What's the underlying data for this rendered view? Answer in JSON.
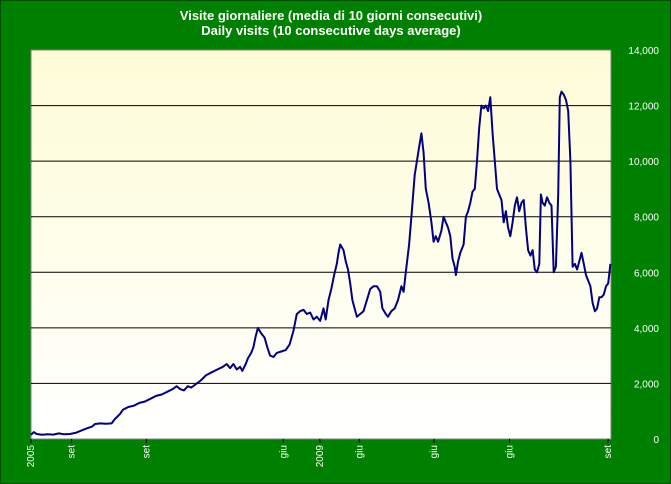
{
  "chart_data": {
    "type": "line",
    "title": "Visite giornaliere (media di 10 giorni consecutivi)",
    "subtitle": "Daily visits (10 consecutive days average)",
    "xlabel": "",
    "ylabel": "",
    "ylim": [
      0,
      14000
    ],
    "y_ticks": [
      "0",
      "2,000",
      "4,000",
      "6,000",
      "8,000",
      "10,000",
      "12,000",
      "14,000"
    ],
    "grid": true,
    "legend": "none",
    "x_ticks": [
      {
        "label": "2005",
        "pos": 0.0
      },
      {
        "label": "set",
        "pos": 0.07
      },
      {
        "label": "set",
        "pos": 0.199
      },
      {
        "label": "giu",
        "pos": 0.435
      },
      {
        "label": "2009",
        "pos": 0.498
      },
      {
        "label": "giu",
        "pos": 0.566
      },
      {
        "label": "giu",
        "pos": 0.695
      },
      {
        "label": "giu",
        "pos": 0.825
      },
      {
        "label": "set",
        "pos": 0.995
      }
    ],
    "series": [
      {
        "color": "#000080",
        "points": [
          [
            0.0,
            150
          ],
          [
            0.005,
            250
          ],
          [
            0.01,
            180
          ],
          [
            0.02,
            150
          ],
          [
            0.03,
            170
          ],
          [
            0.04,
            160
          ],
          [
            0.05,
            200
          ],
          [
            0.06,
            170
          ],
          [
            0.07,
            180
          ],
          [
            0.08,
            220
          ],
          [
            0.09,
            300
          ],
          [
            0.1,
            380
          ],
          [
            0.11,
            450
          ],
          [
            0.115,
            540
          ],
          [
            0.125,
            560
          ],
          [
            0.135,
            550
          ],
          [
            0.145,
            560
          ],
          [
            0.15,
            700
          ],
          [
            0.16,
            900
          ],
          [
            0.165,
            1050
          ],
          [
            0.175,
            1150
          ],
          [
            0.185,
            1200
          ],
          [
            0.195,
            1300
          ],
          [
            0.205,
            1350
          ],
          [
            0.215,
            1450
          ],
          [
            0.225,
            1550
          ],
          [
            0.235,
            1600
          ],
          [
            0.245,
            1700
          ],
          [
            0.255,
            1800
          ],
          [
            0.262,
            1900
          ],
          [
            0.268,
            1800
          ],
          [
            0.275,
            1750
          ],
          [
            0.282,
            1900
          ],
          [
            0.288,
            1850
          ],
          [
            0.295,
            1950
          ],
          [
            0.305,
            2100
          ],
          [
            0.315,
            2300
          ],
          [
            0.325,
            2400
          ],
          [
            0.335,
            2500
          ],
          [
            0.345,
            2600
          ],
          [
            0.352,
            2700
          ],
          [
            0.358,
            2550
          ],
          [
            0.364,
            2700
          ],
          [
            0.37,
            2500
          ],
          [
            0.376,
            2600
          ],
          [
            0.38,
            2450
          ],
          [
            0.386,
            2700
          ],
          [
            0.39,
            2900
          ],
          [
            0.396,
            3100
          ],
          [
            0.4,
            3300
          ],
          [
            0.404,
            3700
          ],
          [
            0.408,
            4000
          ],
          [
            0.414,
            3800
          ],
          [
            0.42,
            3650
          ],
          [
            0.425,
            3300
          ],
          [
            0.43,
            3000
          ],
          [
            0.436,
            2950
          ],
          [
            0.442,
            3100
          ],
          [
            0.45,
            3150
          ],
          [
            0.458,
            3200
          ],
          [
            0.465,
            3400
          ],
          [
            0.472,
            3900
          ],
          [
            0.478,
            4500
          ],
          [
            0.484,
            4600
          ],
          [
            0.49,
            4650
          ],
          [
            0.496,
            4500
          ],
          [
            0.502,
            4550
          ],
          [
            0.508,
            4300
          ],
          [
            0.514,
            4400
          ],
          [
            0.52,
            4250
          ],
          [
            0.526,
            4700
          ],
          [
            0.53,
            4300
          ],
          [
            0.535,
            5000
          ],
          [
            0.54,
            5400
          ],
          [
            0.545,
            5900
          ],
          [
            0.55,
            6300
          ],
          [
            0.553,
            6700
          ],
          [
            0.556,
            7000
          ],
          [
            0.562,
            6800
          ],
          [
            0.566,
            6400
          ],
          [
            0.57,
            6100
          ],
          [
            0.574,
            5600
          ],
          [
            0.578,
            5000
          ],
          [
            0.582,
            4700
          ],
          [
            0.586,
            4400
          ],
          [
            0.592,
            4500
          ],
          [
            0.598,
            4600
          ],
          [
            0.604,
            5000
          ],
          [
            0.61,
            5400
          ],
          [
            0.616,
            5500
          ],
          [
            0.622,
            5500
          ],
          [
            0.628,
            5300
          ],
          [
            0.632,
            4700
          ],
          [
            0.638,
            4500
          ],
          [
            0.642,
            4400
          ],
          [
            0.648,
            4600
          ],
          [
            0.654,
            4700
          ],
          [
            0.66,
            5000
          ],
          [
            0.666,
            5500
          ],
          [
            0.67,
            5300
          ],
          [
            0.674,
            6000
          ],
          [
            0.68,
            7000
          ],
          [
            0.684,
            8000
          ],
          [
            0.69,
            9500
          ],
          [
            0.694,
            10000
          ],
          [
            0.698,
            10500
          ],
          [
            0.702,
            11000
          ],
          [
            0.706,
            10300
          ],
          [
            0.71,
            9000
          ],
          [
            0.715,
            8500
          ],
          [
            0.72,
            7800
          ],
          [
            0.724,
            7100
          ],
          [
            0.728,
            7300
          ],
          [
            0.732,
            7100
          ],
          [
            0.738,
            7500
          ],
          [
            0.742,
            8000
          ],
          [
            0.746,
            7800
          ],
          [
            0.75,
            7600
          ],
          [
            0.754,
            7300
          ],
          [
            0.758,
            6500
          ],
          [
            0.762,
            6200
          ],
          [
            0.764,
            5900
          ],
          [
            0.768,
            6400
          ],
          [
            0.772,
            6700
          ],
          [
            0.778,
            7000
          ],
          [
            0.782,
            8000
          ],
          [
            0.786,
            8200
          ],
          [
            0.79,
            8500
          ],
          [
            0.794,
            8900
          ],
          [
            0.798,
            9000
          ],
          [
            0.802,
            10000
          ],
          [
            0.806,
            11200
          ],
          [
            0.81,
            12000
          ],
          [
            0.814,
            11900
          ],
          [
            0.818,
            12000
          ],
          [
            0.822,
            11800
          ],
          [
            0.826,
            12300
          ],
          [
            0.83,
            11000
          ],
          [
            0.834,
            10000
          ],
          [
            0.838,
            9000
          ],
          [
            0.842,
            8800
          ],
          [
            0.846,
            8600
          ],
          [
            0.85,
            7800
          ],
          [
            0.854,
            8200
          ],
          [
            0.858,
            7600
          ],
          [
            0.862,
            7300
          ],
          [
            0.866,
            7800
          ],
          [
            0.87,
            8400
          ],
          [
            0.874,
            8700
          ],
          [
            0.878,
            8200
          ],
          [
            0.882,
            8500
          ],
          [
            0.886,
            8600
          ],
          [
            0.89,
            7600
          ],
          [
            0.894,
            6800
          ],
          [
            0.898,
            6600
          ],
          [
            0.902,
            6800
          ],
          [
            0.906,
            6100
          ],
          [
            0.91,
            6000
          ],
          [
            0.914,
            6300
          ],
          [
            0.917,
            8800
          ],
          [
            0.92,
            8500
          ],
          [
            0.924,
            8400
          ],
          [
            0.928,
            8700
          ],
          [
            0.932,
            8500
          ],
          [
            0.936,
            8400
          ],
          [
            0.94,
            6000
          ],
          [
            0.944,
            6200
          ],
          [
            0.948,
            8800
          ],
          [
            0.951,
            12300
          ],
          [
            0.954,
            12500
          ],
          [
            0.958,
            12400
          ],
          [
            0.962,
            12200
          ],
          [
            0.966,
            11800
          ],
          [
            0.97,
            10000
          ],
          [
            0.974,
            6200
          ],
          [
            0.978,
            6300
          ],
          [
            0.982,
            6100
          ],
          [
            0.986,
            6400
          ],
          [
            0.99,
            6700
          ],
          [
            0.994,
            6300
          ],
          [
            0.998,
            5900
          ],
          [
            1.002,
            5700
          ],
          [
            1.006,
            5500
          ],
          [
            1.01,
            4900
          ],
          [
            1.014,
            4600
          ],
          [
            1.018,
            4700
          ],
          [
            1.022,
            5100
          ],
          [
            1.026,
            5100
          ],
          [
            1.03,
            5200
          ],
          [
            1.034,
            5500
          ],
          [
            1.038,
            5600
          ],
          [
            1.042,
            6300
          ]
        ]
      }
    ]
  }
}
